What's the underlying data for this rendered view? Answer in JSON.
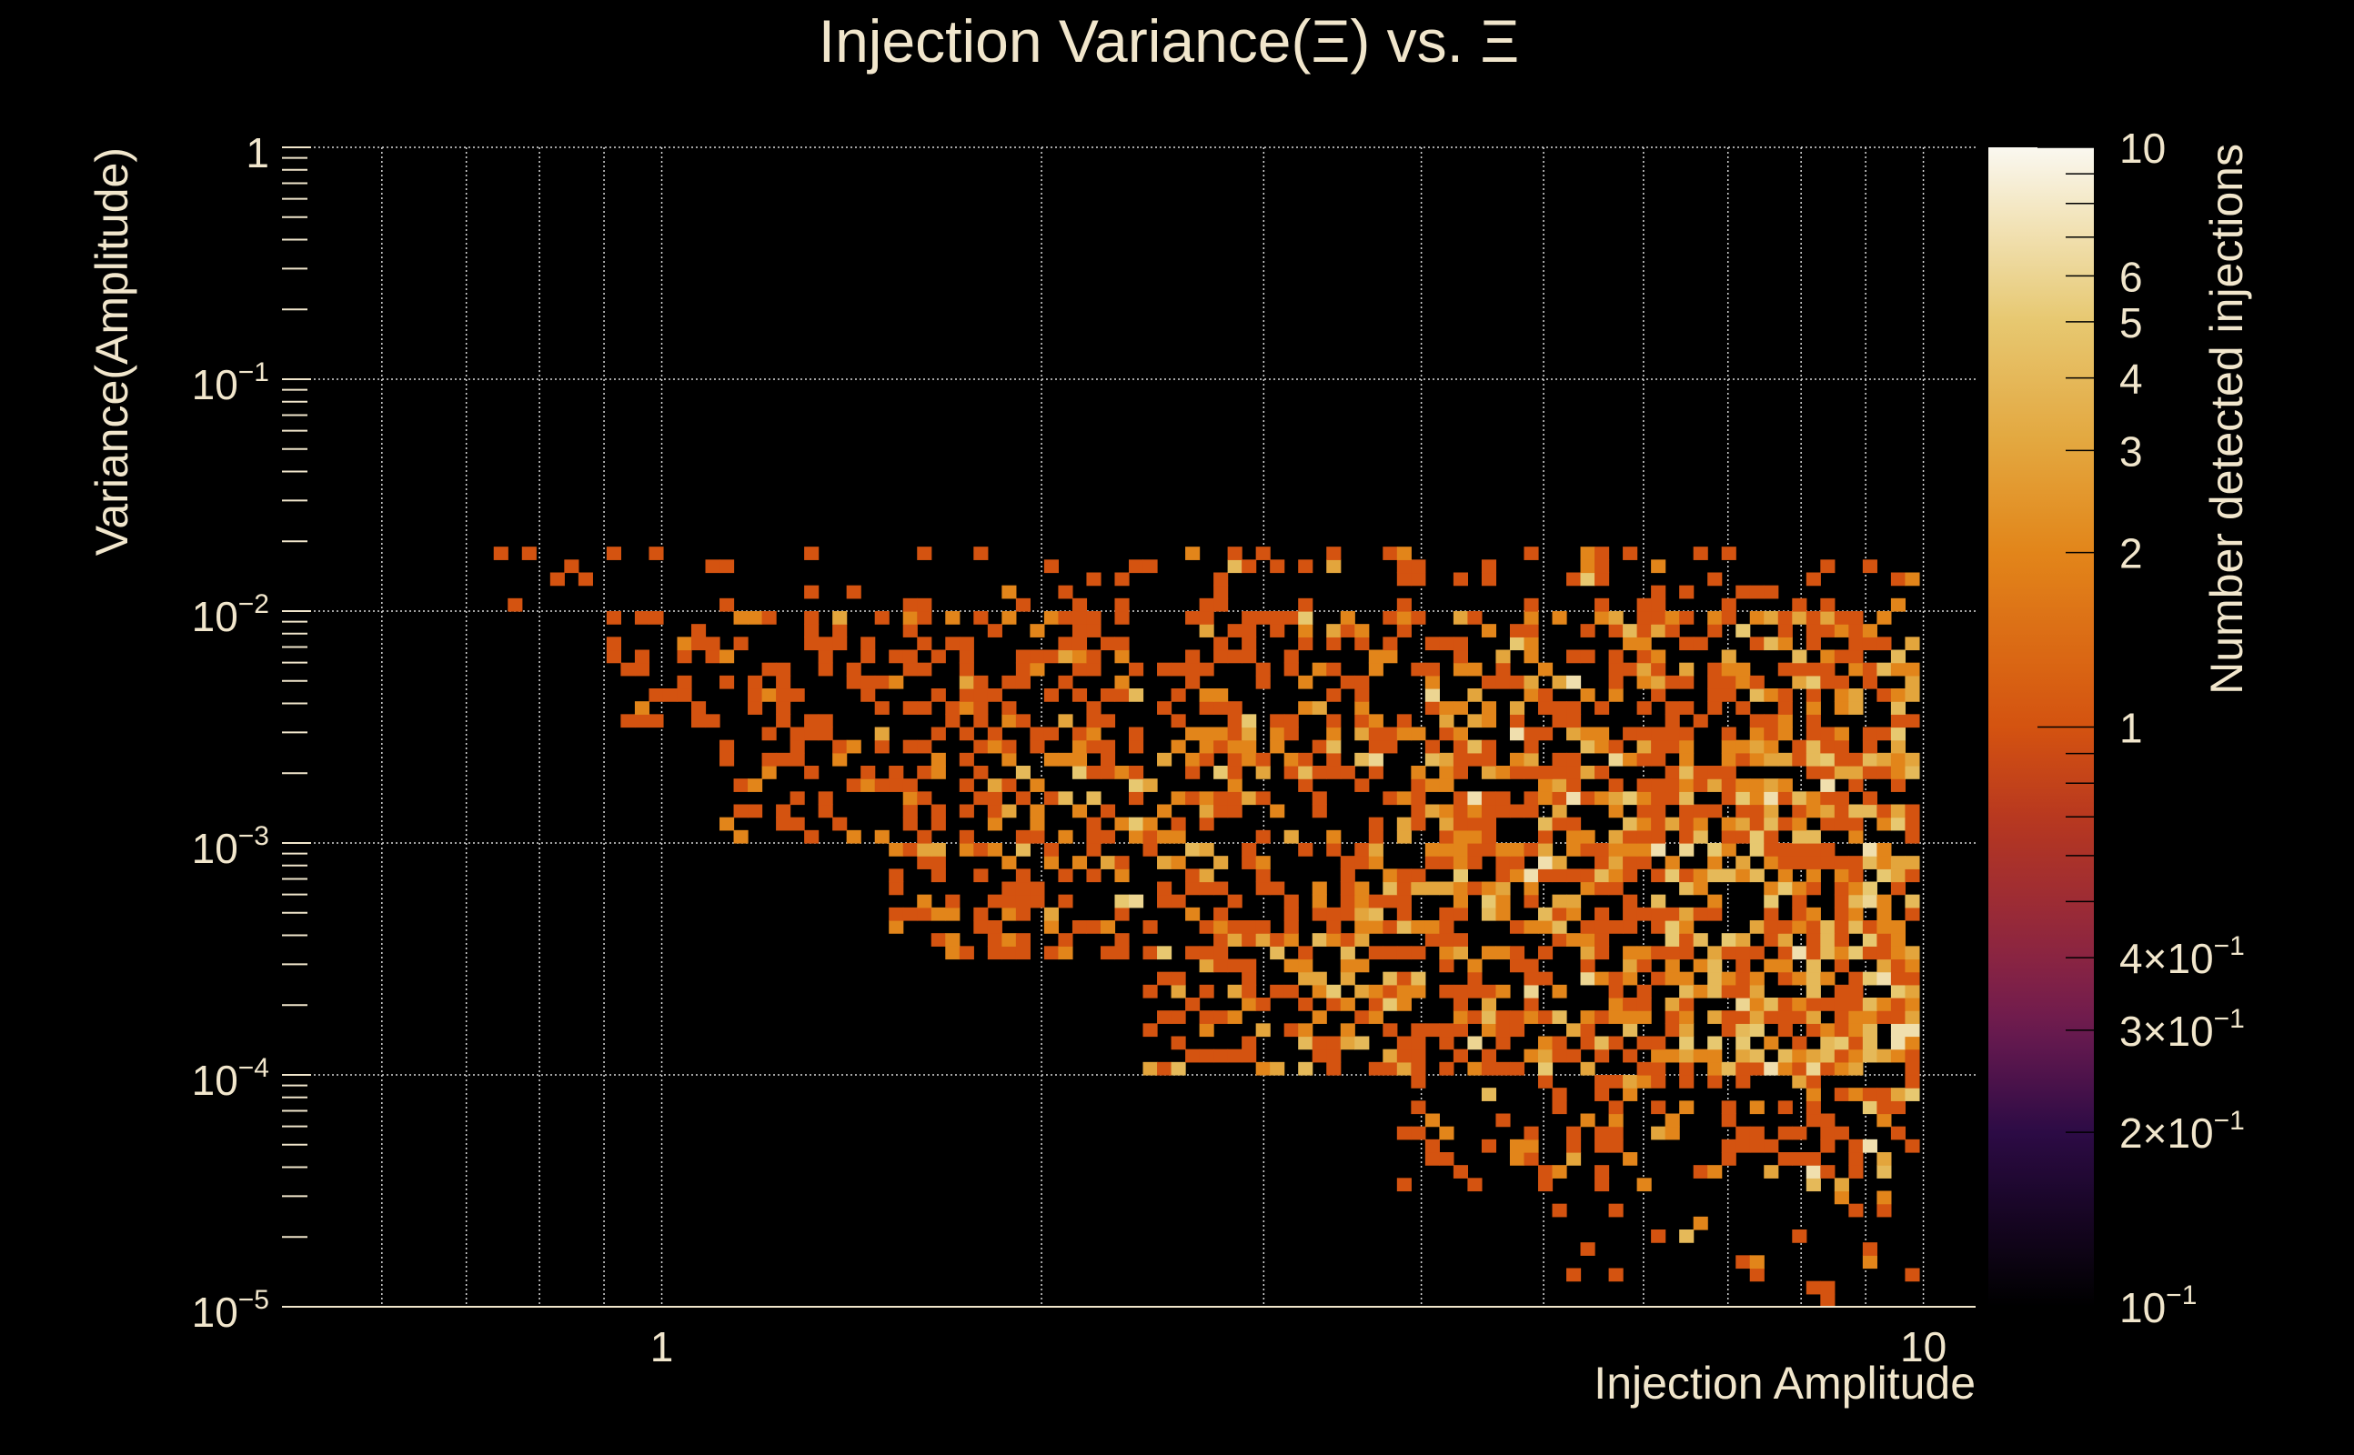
{
  "chart_data": {
    "type": "heatmap",
    "title": "Injection Variance(Ξ) vs. Ξ",
    "xlabel": "Injection Amplitude",
    "ylabel": "Variance(Amplitude)",
    "zlabel": "Number detected injections",
    "x_scale": "log",
    "y_scale": "log",
    "z_scale": "log",
    "xlim": [
      0.5,
      11
    ],
    "ylim": [
      1e-05,
      1
    ],
    "zlim": [
      0.1,
      10
    ],
    "grid": true,
    "x_bins": 120,
    "y_bins": 90,
    "x_ticks": [
      {
        "value": 1,
        "label": "1"
      },
      {
        "value": 10,
        "label": "10"
      }
    ],
    "y_ticks": [
      {
        "value": 1,
        "base": "1",
        "exp": ""
      },
      {
        "value": 0.1,
        "base": "10",
        "exp": "−1"
      },
      {
        "value": 0.01,
        "base": "10",
        "exp": "−2"
      },
      {
        "value": 0.001,
        "base": "10",
        "exp": "−3"
      },
      {
        "value": 0.0001,
        "base": "10",
        "exp": "−4"
      },
      {
        "value": 1e-05,
        "base": "10",
        "exp": "−5"
      }
    ],
    "z_ticks": [
      {
        "value": 10,
        "label": "10",
        "exp": ""
      },
      {
        "value": 6,
        "label": "6",
        "exp": ""
      },
      {
        "value": 5,
        "label": "5",
        "exp": ""
      },
      {
        "value": 4,
        "label": "4",
        "exp": ""
      },
      {
        "value": 3,
        "label": "3",
        "exp": ""
      },
      {
        "value": 2,
        "label": "2",
        "exp": ""
      },
      {
        "value": 1,
        "label": "1",
        "exp": ""
      },
      {
        "value": 0.4,
        "label": "4×10",
        "exp": "−1"
      },
      {
        "value": 0.3,
        "label": "3×10",
        "exp": "−1"
      },
      {
        "value": 0.2,
        "label": "2×10",
        "exp": "−1"
      },
      {
        "value": 0.1,
        "label": "10",
        "exp": "−1"
      }
    ],
    "palette": [
      {
        "z": 0.1,
        "color": "#000000"
      },
      {
        "z": 0.2,
        "color": "#2c0b45"
      },
      {
        "z": 0.3,
        "color": "#6a1a50"
      },
      {
        "z": 0.4,
        "color": "#8a2442"
      },
      {
        "z": 0.7,
        "color": "#b8381f"
      },
      {
        "z": 1,
        "color": "#d45310"
      },
      {
        "z": 2,
        "color": "#e2851a"
      },
      {
        "z": 3,
        "color": "#e3a53c"
      },
      {
        "z": 5,
        "color": "#e7c870"
      },
      {
        "z": 10,
        "color": "#faf8f0"
      }
    ],
    "occupancy_regions_approx": [
      {
        "y_range": [
          0.01,
          0.02
        ],
        "x_range": [
          0.7,
          10
        ],
        "fill": 0.16,
        "mean_count": 1.2
      },
      {
        "y_range": [
          0.003,
          0.01
        ],
        "x_range": [
          0.9,
          10
        ],
        "fill": 0.42,
        "mean_count": 1.5
      },
      {
        "y_range": [
          0.001,
          0.003
        ],
        "x_range": [
          1.1,
          10
        ],
        "fill": 0.55,
        "mean_count": 1.8
      },
      {
        "y_range": [
          0.0003,
          0.001
        ],
        "x_range": [
          1.5,
          10
        ],
        "fill": 0.6,
        "mean_count": 2.0
      },
      {
        "y_range": [
          0.0001,
          0.0003
        ],
        "x_range": [
          2.4,
          10
        ],
        "fill": 0.6,
        "mean_count": 2.0
      },
      {
        "y_range": [
          3e-05,
          0.0001
        ],
        "x_range": [
          3.8,
          10
        ],
        "fill": 0.38,
        "mean_count": 1.6
      },
      {
        "y_range": [
          1e-05,
          3e-05
        ],
        "x_range": [
          5,
          10
        ],
        "fill": 0.12,
        "mean_count": 1.3
      }
    ],
    "text_color": "#f1e6cc",
    "background": "#000000"
  }
}
